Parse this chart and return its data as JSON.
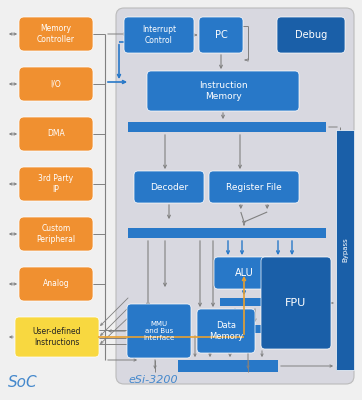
{
  "outer_bg": "#f0f0f0",
  "inner_bg": "#d8d8e0",
  "blue_dark": "#1a5fa8",
  "blue_mid": "#2878c8",
  "blue_btn": "#1e6db8",
  "orange": "#f09030",
  "yellow": "#f8d840",
  "white": "#ffffff",
  "text_blue": "#4488cc",
  "gray_line": "#808080",
  "soc_label": "SoC",
  "esi_label": "eSi-3200",
  "left_labels": [
    "Memory\nController",
    "I/O",
    "DMA",
    "3rd Party\nIP",
    "Custom\nPeripheral",
    "Analog"
  ],
  "udi_label": "User-defined\nInstructions"
}
